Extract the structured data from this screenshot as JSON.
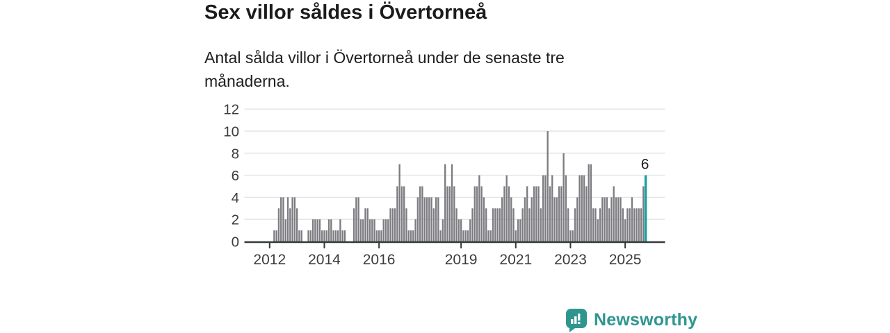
{
  "header": {
    "title": "Sex villor såldes i Övertorneå",
    "subtitle": "Antal sålda villor i Övertorneå under de senaste tre månaderna."
  },
  "chart_data": {
    "type": "bar",
    "title": "Sex villor såldes i Övertorneå",
    "subtitle": "Antal sålda villor i Övertorneå under de senaste tre månaderna.",
    "description": "Monthly bars (rolling three-month counts) from March 2012 to October 2025; last bar highlighted",
    "values": [
      1,
      1,
      3,
      4,
      4,
      2,
      4,
      3,
      4,
      4,
      3,
      1,
      1,
      0,
      0,
      1,
      1,
      2,
      2,
      2,
      2,
      1,
      1,
      1,
      2,
      2,
      1,
      1,
      1,
      2,
      1,
      1,
      0,
      0,
      0,
      3,
      4,
      4,
      2,
      2,
      3,
      3,
      2,
      2,
      2,
      1,
      1,
      1,
      2,
      2,
      2,
      3,
      3,
      3,
      5,
      7,
      5,
      5,
      3,
      1,
      1,
      1,
      2,
      4,
      5,
      5,
      4,
      4,
      4,
      4,
      3,
      4,
      4,
      1,
      2,
      7,
      5,
      5,
      7,
      5,
      3,
      2,
      2,
      1,
      1,
      1,
      2,
      3,
      5,
      5,
      6,
      5,
      4,
      3,
      1,
      1,
      3,
      3,
      3,
      3,
      4,
      5,
      6,
      5,
      4,
      3,
      1,
      2,
      2,
      3,
      4,
      5,
      3,
      4,
      5,
      5,
      5,
      3,
      6,
      6,
      10,
      5,
      6,
      4,
      4,
      5,
      5,
      8,
      6,
      3,
      1,
      1,
      3,
      4,
      6,
      6,
      6,
      5,
      7,
      7,
      3,
      3,
      2,
      3,
      4,
      4,
      4,
      3,
      4,
      5,
      4,
      4,
      4,
      3,
      2,
      3,
      3,
      4,
      3,
      3,
      3,
      3,
      5,
      6
    ],
    "highlight": {
      "index_from_end": 1,
      "value": 6,
      "label": "6",
      "color": "#13a3a0"
    },
    "x_ticks": [
      {
        "label": "2012",
        "month_offset": -2
      },
      {
        "label": "2014",
        "month_offset": 22
      },
      {
        "label": "2016",
        "month_offset": 46
      },
      {
        "label": "2019",
        "month_offset": 82
      },
      {
        "label": "2021",
        "month_offset": 106
      },
      {
        "label": "2023",
        "month_offset": 130
      },
      {
        "label": "2025",
        "month_offset": 154
      }
    ],
    "y_ticks": [
      0,
      2,
      4,
      6,
      8,
      10,
      12
    ],
    "ylim": [
      0,
      12
    ],
    "grid": true,
    "legend": "none",
    "colors": {
      "bar": "#7b7b80",
      "highlight": "#13a3a0",
      "grid": "#e3e3e3",
      "axis": "#333a3a",
      "tick_label": "#3c3c3c",
      "annotation": "#1b1b1b"
    }
  },
  "footer": {
    "brand": "Newsworthy",
    "brand_color": "#2e968f"
  }
}
